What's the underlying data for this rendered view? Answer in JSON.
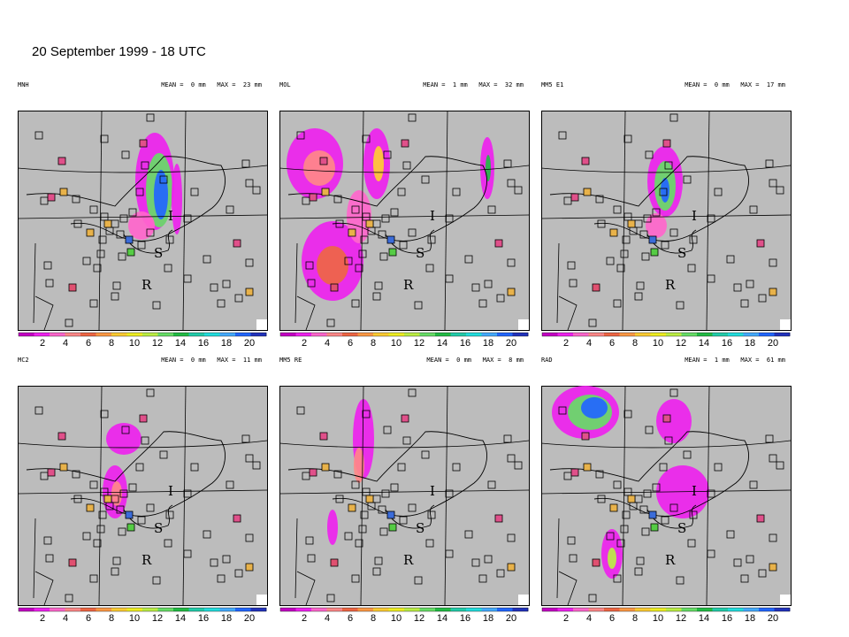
{
  "title": "20 September 1999 - 18 UTC",
  "mean_label": "MEAN =",
  "max_label": "MAX =",
  "colorbar": {
    "ticks": [
      "2",
      "4",
      "6",
      "8",
      "10",
      "12",
      "14",
      "16",
      "18",
      "20"
    ],
    "colors": [
      "#c400c4",
      "#ee22ee",
      "#ff66cc",
      "#ff8888",
      "#ee6644",
      "#ff9944",
      "#ffcc33",
      "#eeee22",
      "#bbee44",
      "#66dd66",
      "#22bb44",
      "#22ccaa",
      "#22dddd",
      "#44aaff",
      "#2266ff",
      "#2233bb"
    ]
  },
  "background_color": "#bcbcbc",
  "panels": [
    {
      "name": "MNH",
      "mean": "0 mm",
      "max": "23 mm"
    },
    {
      "name": "MOL",
      "mean": "1 mm",
      "max": "32 mm"
    },
    {
      "name": "MM5 E1",
      "mean": "0 mm",
      "max": "17 mm"
    },
    {
      "name": "MC2",
      "mean": "0 mm",
      "max": "11 mm"
    },
    {
      "name": "MM5 RE",
      "mean": "0 mm",
      "max": "8 mm"
    },
    {
      "name": "RAD",
      "mean": "1 mm",
      "max": "61 mm"
    }
  ],
  "map_labels": {
    "italy": "I",
    "switzerland": "S",
    "r_label": "R"
  }
}
